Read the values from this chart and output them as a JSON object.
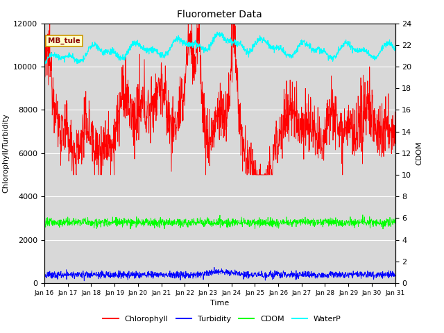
{
  "title": "Fluorometer Data",
  "xlabel": "Time",
  "ylabel_left": "Chlorophyll/Turbidity",
  "ylabel_right": "CDOM",
  "annotation": "MB_tule",
  "ylim_left": [
    0,
    12000
  ],
  "ylim_right": [
    0,
    24
  ],
  "x_tick_labels": [
    "Jan 16",
    "Jan 17",
    "Jan 18",
    "Jan 19",
    "Jan 20",
    "Jan 21",
    "Jan 22",
    "Jan 23",
    "Jan 24",
    "Jan 25",
    "Jan 26",
    "Jan 27",
    "Jan 28",
    "Jan 29",
    "Jan 30",
    "Jan 31"
  ],
  "legend_labels": [
    "Chlorophyll",
    "Turbidity",
    "CDOM",
    "WaterP"
  ],
  "legend_colors": [
    "red",
    "blue",
    "green",
    "cyan"
  ],
  "bg_color": "#d8d8d8",
  "fig_color": "#ffffff"
}
